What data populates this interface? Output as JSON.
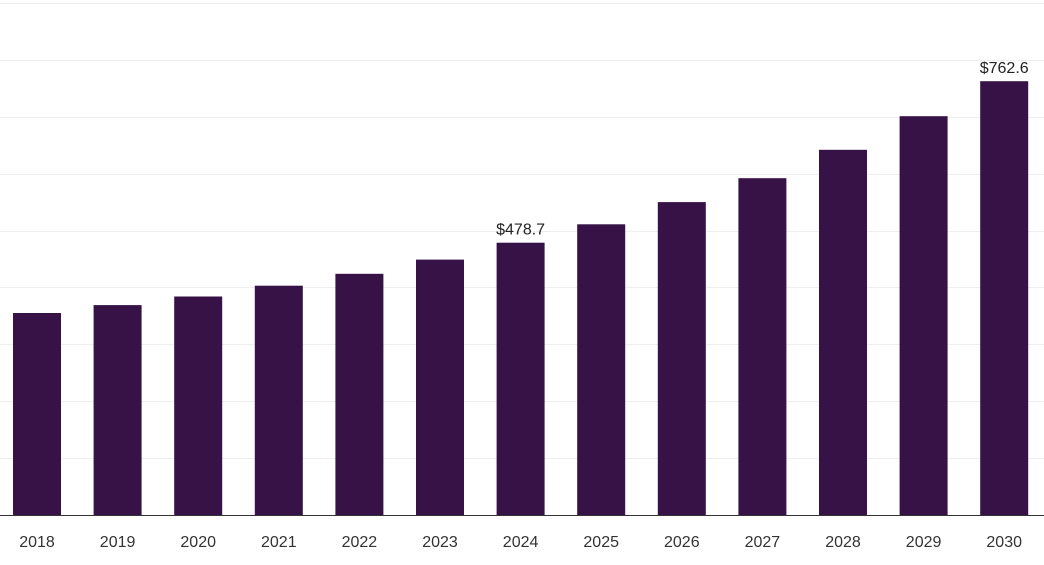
{
  "chart_data": {
    "type": "bar",
    "title": "",
    "xlabel": "",
    "ylabel": "",
    "categories": [
      "2018",
      "2019",
      "2020",
      "2021",
      "2022",
      "2023",
      "2024",
      "2025",
      "2026",
      "2027",
      "2028",
      "2029",
      "2030"
    ],
    "values": [
      355,
      369,
      384,
      403,
      424,
      449,
      478.7,
      511,
      550,
      592,
      642,
      701,
      762.6
    ],
    "ylim": [
      0,
      900
    ],
    "gridlines": [
      0,
      100,
      200,
      300,
      400,
      500,
      600,
      700,
      800,
      900
    ],
    "grid": true,
    "data_labels": [
      {
        "category": "2024",
        "text": "$478.7"
      },
      {
        "category": "2030",
        "text": "$762.6"
      }
    ],
    "bar_color": "#371247",
    "gridline_color": "#eeeeee",
    "axis_color": "#333333"
  }
}
